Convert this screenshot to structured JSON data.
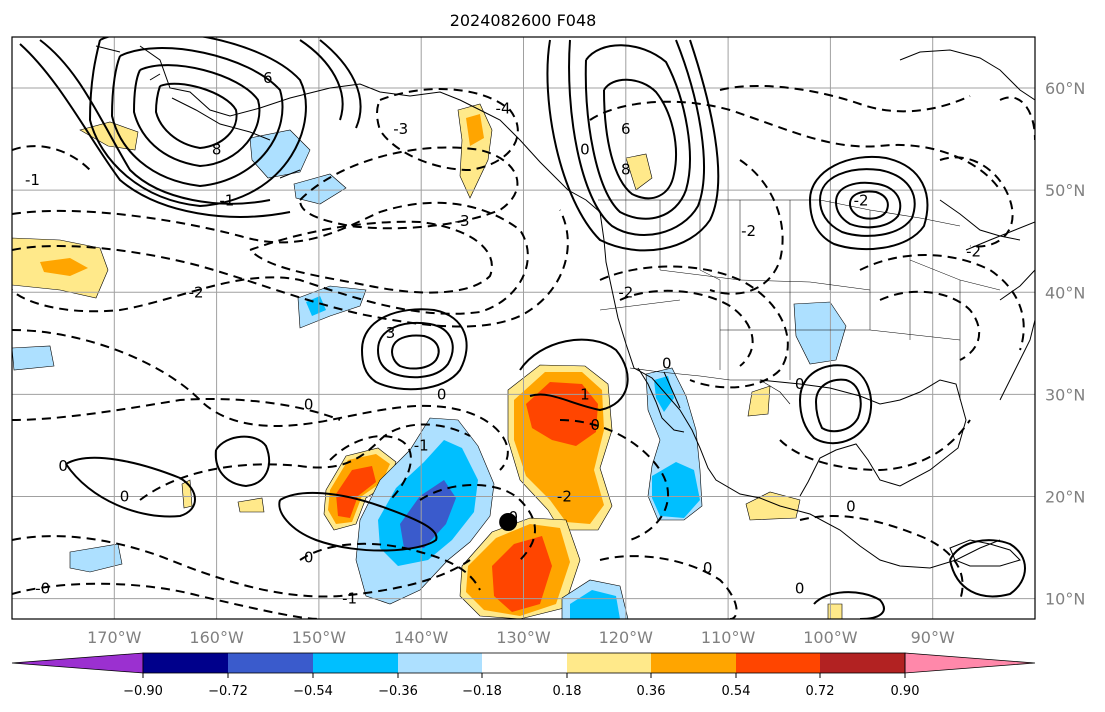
{
  "title": "2024082600 F048",
  "map": {
    "lon_range": [
      -180,
      -80
    ],
    "lat_range": [
      8,
      65
    ],
    "lon_ticks": [
      {
        "value": -170,
        "label": "170°W"
      },
      {
        "value": -160,
        "label": "160°W"
      },
      {
        "value": -150,
        "label": "150°W"
      },
      {
        "value": -140,
        "label": "140°W"
      },
      {
        "value": -130,
        "label": "130°W"
      },
      {
        "value": -120,
        "label": "120°W"
      },
      {
        "value": -110,
        "label": "110°W"
      },
      {
        "value": -100,
        "label": "100°W"
      },
      {
        "value": -90,
        "label": "90°W"
      }
    ],
    "lat_ticks": [
      {
        "value": 10,
        "label": "10°N"
      },
      {
        "value": 20,
        "label": "20°N"
      },
      {
        "value": 30,
        "label": "30°N"
      },
      {
        "value": 40,
        "label": "40°N"
      },
      {
        "value": 50,
        "label": "50°N"
      },
      {
        "value": 60,
        "label": "60°N"
      }
    ],
    "grid": true,
    "marker": {
      "lon": -131.5,
      "lat": 17.5,
      "color": "#000000"
    },
    "contour_labels": [
      {
        "text": "6",
        "lon": -155,
        "lat": 61
      },
      {
        "text": "8",
        "lon": -160,
        "lat": 54
      },
      {
        "text": "-3",
        "lon": -142,
        "lat": 56
      },
      {
        "text": "-3",
        "lon": -136,
        "lat": 47
      },
      {
        "text": "-2",
        "lon": -162,
        "lat": 40
      },
      {
        "text": "-1",
        "lon": -178,
        "lat": 51
      },
      {
        "text": "-1",
        "lon": -159,
        "lat": 49
      },
      {
        "text": "-4",
        "lon": -132,
        "lat": 58
      },
      {
        "text": "0",
        "lon": -124,
        "lat": 54
      },
      {
        "text": "6",
        "lon": -120,
        "lat": 56
      },
      {
        "text": "8",
        "lon": -120,
        "lat": 52
      },
      {
        "text": "-2",
        "lon": -120,
        "lat": 40
      },
      {
        "text": "3",
        "lon": -143,
        "lat": 36
      },
      {
        "text": "0",
        "lon": -138,
        "lat": 30
      },
      {
        "text": "1",
        "lon": -124,
        "lat": 30
      },
      {
        "text": "0",
        "lon": -123,
        "lat": 27
      },
      {
        "text": "-1",
        "lon": -140,
        "lat": 25
      },
      {
        "text": "0",
        "lon": -116,
        "lat": 33
      },
      {
        "text": "-2",
        "lon": -126,
        "lat": 20
      },
      {
        "text": "0",
        "lon": -151,
        "lat": 29
      },
      {
        "text": "0",
        "lon": -175,
        "lat": 23
      },
      {
        "text": "0",
        "lon": -169,
        "lat": 20
      },
      {
        "text": "0",
        "lon": -151,
        "lat": 14
      },
      {
        "text": "0",
        "lon": -131,
        "lat": 18
      },
      {
        "text": "-1",
        "lon": -147,
        "lat": 10
      },
      {
        "text": "-0",
        "lon": -177,
        "lat": 11
      },
      {
        "text": "0",
        "lon": -112,
        "lat": 13
      },
      {
        "text": "0",
        "lon": -98,
        "lat": 19
      },
      {
        "text": "0",
        "lon": -103,
        "lat": 11
      },
      {
        "text": "-2",
        "lon": -97,
        "lat": 49
      },
      {
        "text": "-2",
        "lon": -108,
        "lat": 46
      },
      {
        "text": "-2",
        "lon": -86,
        "lat": 44
      },
      {
        "text": "0",
        "lon": -103,
        "lat": 31
      }
    ]
  },
  "colorbar": {
    "ticks": [
      "−0.90",
      "−0.72",
      "−0.54",
      "−0.36",
      "−0.18",
      "0.18",
      "0.36",
      "0.54",
      "0.72",
      "0.90"
    ],
    "colors": [
      "#9b30d0",
      "#00008b",
      "#3a5bcc",
      "#00bfff",
      "#ade0ff",
      "#ffffff",
      "#ffe98a",
      "#ffa500",
      "#ff4500",
      "#b22222",
      "#ff88aa"
    ]
  }
}
